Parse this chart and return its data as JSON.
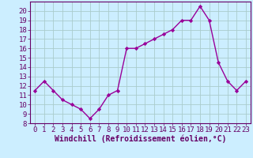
{
  "x": [
    0,
    1,
    2,
    3,
    4,
    5,
    6,
    7,
    8,
    9,
    10,
    11,
    12,
    13,
    14,
    15,
    16,
    17,
    18,
    19,
    20,
    21,
    22,
    23
  ],
  "y": [
    11.5,
    12.5,
    11.5,
    10.5,
    10,
    9.5,
    8.5,
    9.5,
    11,
    11.5,
    16,
    16,
    16.5,
    17,
    17.5,
    18,
    19,
    19,
    20.5,
    19,
    14.5,
    12.5,
    11.5,
    12.5
  ],
  "line_color": "#990099",
  "marker": "D",
  "marker_size": 2.2,
  "bg_color": "#cceeff",
  "grid_color": "#aacccc",
  "xlabel": "Windchill (Refroidissement éolien,°C)",
  "xlim": [
    -0.5,
    23.5
  ],
  "ylim": [
    8,
    21
  ],
  "yticks": [
    8,
    9,
    10,
    11,
    12,
    13,
    14,
    15,
    16,
    17,
    18,
    19,
    20
  ],
  "xticks": [
    0,
    1,
    2,
    3,
    4,
    5,
    6,
    7,
    8,
    9,
    10,
    11,
    12,
    13,
    14,
    15,
    16,
    17,
    18,
    19,
    20,
    21,
    22,
    23
  ],
  "tick_fontsize": 6.5,
  "xlabel_fontsize": 7.0,
  "tick_color": "#660066",
  "label_color": "#660066",
  "spine_color": "#660066",
  "linewidth": 1.0
}
